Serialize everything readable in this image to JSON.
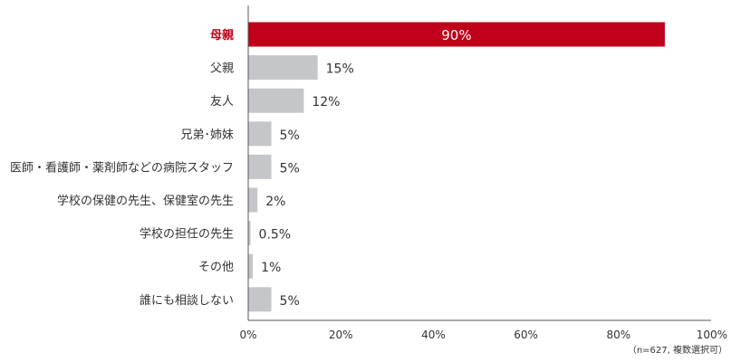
{
  "chart_data": {
    "type": "bar",
    "orientation": "horizontal",
    "categories": [
      "母親",
      "父親",
      "友人",
      "兄弟･姉妹",
      "医師・看護師・薬剤師などの病院スタッフ",
      "学校の保健の先生、保健室の先生",
      "学校の担任の先生",
      "その他",
      "誰にも相談しない"
    ],
    "values": [
      90,
      15,
      12,
      5,
      5,
      2,
      0.5,
      1,
      5
    ],
    "value_labels": [
      "90%",
      "15%",
      "12%",
      "5%",
      "5%",
      "2%",
      "0.5%",
      "1%",
      "5%"
    ],
    "highlight_index": 0,
    "xlim": [
      0,
      100
    ],
    "x_ticks": [
      "0%",
      "20%",
      "40%",
      "60%",
      "80%",
      "100%"
    ],
    "x_tick_values": [
      0,
      20,
      40,
      60,
      80,
      100
    ],
    "note": "（n=627, 複数選択可）",
    "grid": false,
    "colors": {
      "highlight": "#c0001a",
      "bar": "#c4c6c9",
      "axis": "#555555"
    }
  }
}
